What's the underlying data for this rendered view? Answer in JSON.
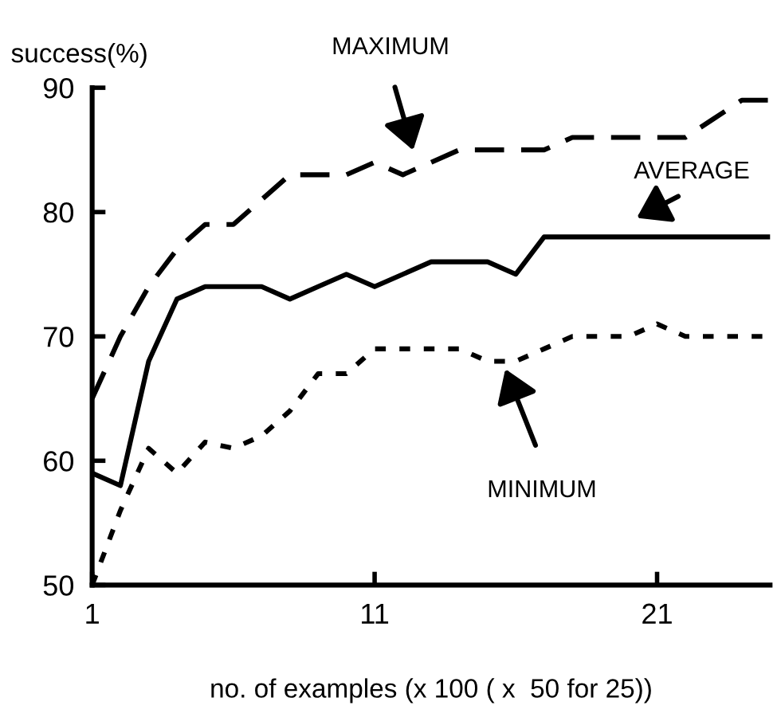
{
  "chart_data": {
    "type": "line",
    "ylabel": "success(%)",
    "xlabel": "no. of examples (x 100 ( x  50 for 25))",
    "x": [
      1,
      2,
      3,
      4,
      5,
      6,
      7,
      8,
      9,
      10,
      11,
      12,
      13,
      14,
      15,
      16,
      17,
      18,
      19,
      20,
      21,
      22,
      23,
      24,
      25
    ],
    "series": [
      {
        "color": "#000000",
        "line_style": "dashed",
        "values": [
          65,
          70,
          74,
          77,
          79,
          79,
          81,
          83,
          83,
          83,
          84,
          83,
          84,
          85,
          85,
          85,
          85,
          86,
          86,
          86,
          86,
          86,
          87.5,
          89,
          89
        ]
      },
      {
        "color": "#000000",
        "line_style": "solid",
        "values": [
          59,
          58,
          68,
          73,
          74,
          74,
          74,
          73,
          74,
          75,
          74,
          75,
          76,
          76,
          76,
          75,
          78,
          78,
          78,
          78,
          78,
          78,
          78,
          78,
          78
        ]
      },
      {
        "color": "#000000",
        "line_style": "dotted",
        "values": [
          50,
          56,
          61,
          59,
          61.5,
          61,
          62,
          64,
          67,
          67,
          69,
          69,
          69,
          69,
          68,
          68,
          69,
          70,
          70,
          70,
          71,
          70,
          70,
          70,
          70
        ]
      }
    ],
    "xlim": [
      1,
      25
    ],
    "ylim": [
      50,
      90
    ],
    "xticks": [
      1,
      11,
      21
    ],
    "yticks": [
      50,
      60,
      70,
      80,
      90
    ],
    "grid": false,
    "legend": false,
    "annotations": [
      "MAXIMUM",
      "AVERAGE",
      "MINIMUM"
    ]
  }
}
